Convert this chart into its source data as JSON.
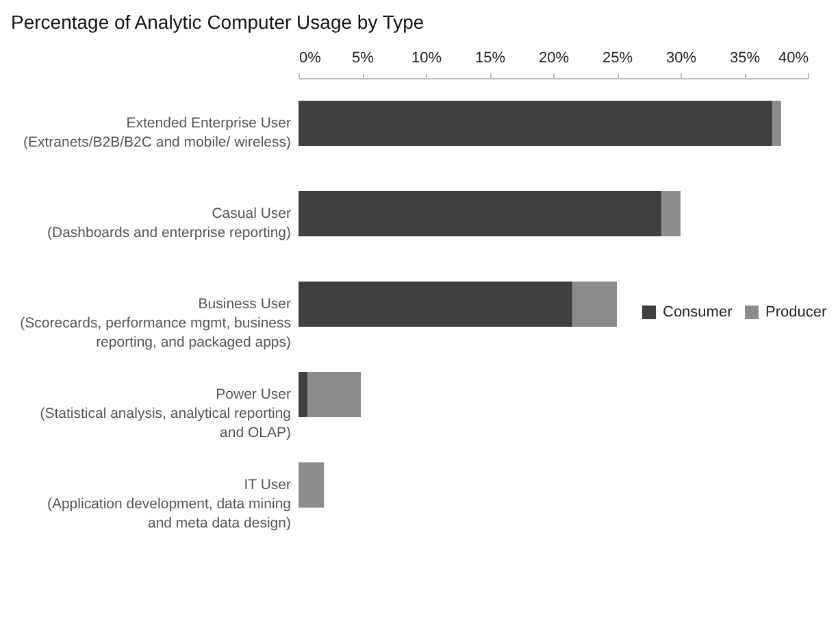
{
  "chart_data": {
    "type": "bar",
    "orientation": "horizontal",
    "stacked": true,
    "title": "Percentage of Analytic Computer Usage by Type",
    "categories": [
      "Extended Enterprise User\n(Extranets/B2B/B2C and mobile/ wireless)",
      "Casual User\n(Dashboards and enterprise reporting)",
      "Business User\n(Scorecards, performance mgmt, business\nreporting, and packaged apps)",
      "Power User\n(Statistical analysis, analytical reporting\nand OLAP)",
      "IT User\n(Application development, data mining\nand meta data design)"
    ],
    "series": [
      {
        "name": "Consumer",
        "color": "#404040",
        "values": [
          37.2,
          28.5,
          21.5,
          0.7,
          0
        ]
      },
      {
        "name": "Producer",
        "color": "#8c8c8c",
        "values": [
          0.7,
          1.5,
          3.5,
          4.2,
          2.0
        ]
      }
    ],
    "xlim": [
      0,
      40
    ],
    "xticks": [
      {
        "value": 0,
        "label": "0%"
      },
      {
        "value": 5,
        "label": "5%"
      },
      {
        "value": 10,
        "label": "10%"
      },
      {
        "value": 15,
        "label": "15%"
      },
      {
        "value": 20,
        "label": "20%"
      },
      {
        "value": 25,
        "label": "25%"
      },
      {
        "value": 30,
        "label": "30%"
      },
      {
        "value": 35,
        "label": "35%"
      },
      {
        "value": 40,
        "label": "40%"
      }
    ],
    "grid": false,
    "legend": "right"
  }
}
